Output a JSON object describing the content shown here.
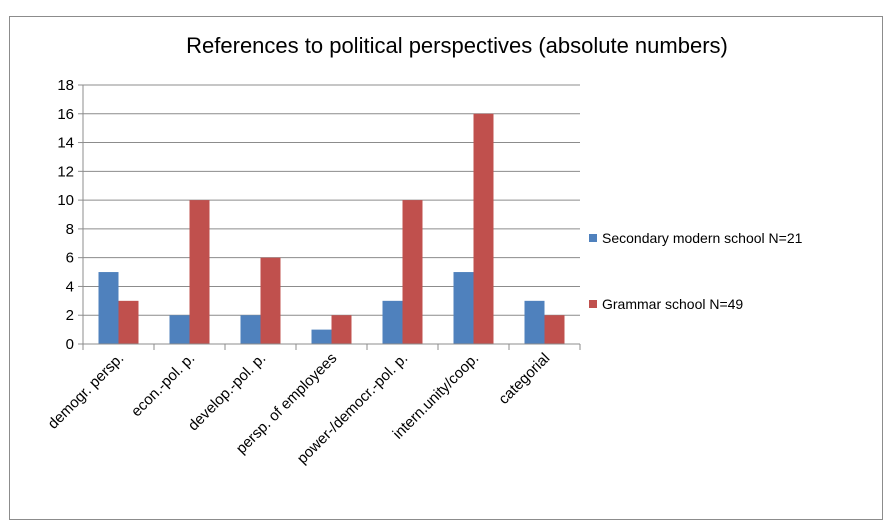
{
  "chart_data": {
    "type": "bar",
    "title": "References to political perspectives (absolute numbers)",
    "categories": [
      "demogr. persp.",
      "econ.-pol. p.",
      "develop.-pol. p.",
      "persp. of employees",
      "power-/democr.-pol. p.",
      "intern.unity/coop.",
      "categorial"
    ],
    "series": [
      {
        "name": "Secondary modern school N=21",
        "color": "#4f81bd",
        "values": [
          5,
          2,
          2,
          1,
          3,
          5,
          3
        ]
      },
      {
        "name": "Grammar school N=49",
        "color": "#c0504d",
        "values": [
          3,
          10,
          6,
          2,
          10,
          16,
          2
        ]
      }
    ],
    "ylim": [
      0,
      18
    ],
    "yticks": [
      0,
      2,
      4,
      6,
      8,
      10,
      12,
      14,
      16,
      18
    ],
    "grid": true,
    "legend": "right"
  }
}
